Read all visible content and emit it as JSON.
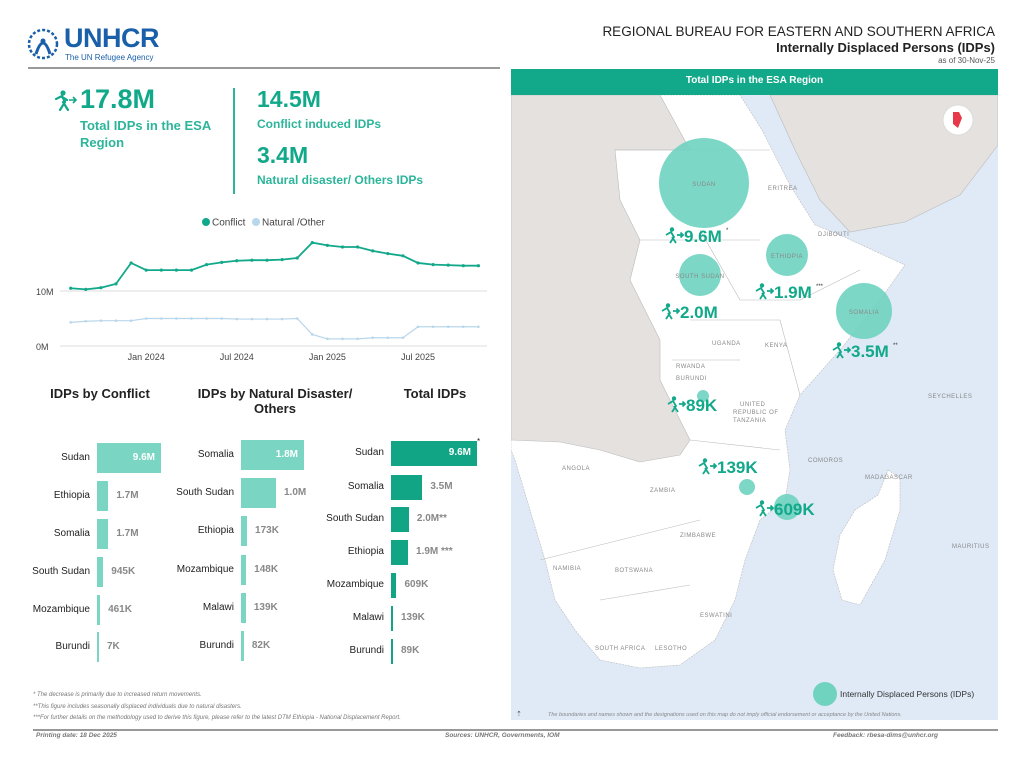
{
  "logo": {
    "name": "UNHCR",
    "tagline": "The UN Refugee Agency"
  },
  "header": {
    "bureau": "REGIONAL BUREAU FOR EASTERN  AND SOUTHERN AFRICA",
    "title": "Internally Displaced Persons (IDPs)",
    "as_of": "as of 30-Nov-25"
  },
  "kpis": {
    "total": {
      "value": "17.8M",
      "label": "Total IDPs in  the ESA Region"
    },
    "conflict": {
      "value": "14.5M",
      "label": "Conflict induced IDPs"
    },
    "natural": {
      "value": "3.4M",
      "label": "Natural disaster/ Others IDPs"
    }
  },
  "colors": {
    "accent": "#12a88a",
    "light_bar": "#7ad5c3",
    "natural_line": "#b9d7ec",
    "map_sea": "#dfeaf6",
    "map_other_land": "#e4e1df"
  },
  "chart_data": [
    {
      "type": "line",
      "legend": [
        "Conflict",
        "Natural /Other"
      ],
      "legend_placement": "top",
      "x": [
        "2023-08",
        "2023-09",
        "2023-10",
        "2023-11",
        "2023-12",
        "2024-01",
        "2024-02",
        "2024-03",
        "2024-04",
        "2024-05",
        "2024-06",
        "2024-07",
        "2024-08",
        "2024-09",
        "2024-10",
        "2024-11",
        "2024-12",
        "2025-01",
        "2025-02",
        "2025-03",
        "2025-04",
        "2025-05",
        "2025-06",
        "2025-07",
        "2025-08",
        "2025-09",
        "2025-10",
        "2025-11"
      ],
      "x_tick_labels": [
        "Jan 2024",
        "Jul 2024",
        "Jan 2025",
        "Jul 2025"
      ],
      "x_tick_values": [
        "2024-01",
        "2024-07",
        "2025-01",
        "2025-07"
      ],
      "y_tick_labels": [
        "0M",
        "10M"
      ],
      "y_tick_values": [
        0,
        10
      ],
      "ylim": [
        0,
        20
      ],
      "unit": "millions",
      "grid": "horizontal",
      "series": [
        {
          "name": "Conflict",
          "color": "#12a88a",
          "values": [
            10.5,
            10.3,
            10.6,
            11.3,
            15.1,
            13.8,
            13.8,
            13.8,
            13.8,
            14.8,
            15.2,
            15.5,
            15.6,
            15.6,
            15.7,
            16.0,
            18.8,
            18.3,
            18.0,
            18.0,
            17.3,
            16.8,
            16.4,
            15.1,
            14.8,
            14.7,
            14.6,
            14.6
          ]
        },
        {
          "name": "Natural /Other",
          "color": "#b9d7ec",
          "values": [
            4.3,
            4.5,
            4.6,
            4.6,
            4.6,
            5.0,
            5.0,
            5.0,
            5.0,
            5.0,
            5.0,
            4.9,
            4.9,
            4.9,
            4.9,
            5.0,
            2.1,
            1.3,
            1.3,
            1.3,
            1.5,
            1.5,
            1.5,
            3.5,
            3.5,
            3.5,
            3.5,
            3.5
          ]
        }
      ]
    },
    {
      "type": "bar",
      "title": "IDPs by Conflict",
      "orientation": "horizontal",
      "categories": [
        "Sudan",
        "Ethiopia",
        "Somalia",
        "South Sudan",
        "Mozambique",
        "Burundi"
      ],
      "values": [
        9600000,
        1700000,
        1700000,
        945000,
        461000,
        7000
      ],
      "labels": [
        "9.6M",
        "1.7M",
        "1.7M",
        "945K",
        "461K",
        "7K"
      ]
    },
    {
      "type": "bar",
      "title": "IDPs by Natural Disaster/ Others",
      "orientation": "horizontal",
      "categories": [
        "Somalia",
        "South Sudan",
        "Ethiopia",
        "Mozambique",
        "Malawi",
        "Burundi"
      ],
      "values": [
        1800000,
        1000000,
        173000,
        148000,
        139000,
        82000
      ],
      "labels": [
        "1.8M",
        "1.0M",
        "173K",
        "148K",
        "139K",
        "82K"
      ]
    },
    {
      "type": "bar",
      "title": "Total IDPs",
      "orientation": "horizontal",
      "categories": [
        "Sudan",
        "Somalia",
        "South Sudan",
        "Ethiopia",
        "Mozambique",
        "Malawi",
        "Burundi"
      ],
      "values": [
        9600000,
        3500000,
        2000000,
        1900000,
        609000,
        139000,
        89000
      ],
      "labels": [
        "9.6M",
        "3.5M",
        "2.0M**",
        "1.9M ***",
        "609K",
        "139K",
        "89K"
      ],
      "marker": "*"
    }
  ],
  "map": {
    "title": "Total IDPs in the ESA Region",
    "bubbles": [
      {
        "country": "SUDAN",
        "label": "9.6M",
        "note": "*",
        "value": 9600000
      },
      {
        "country": "SOUTH SUDAN",
        "label": "2.0M",
        "note": "",
        "value": 2000000
      },
      {
        "country": "ETHIOPIA",
        "label": "1.9M",
        "note": "***",
        "value": 1900000
      },
      {
        "country": "SOMALIA",
        "label": "3.5M",
        "note": "**",
        "value": 3500000
      },
      {
        "country": "BURUNDI",
        "label": "89K",
        "note": "",
        "value": 89000
      },
      {
        "country": "MALAWI",
        "label": "139K",
        "note": "",
        "value": 139000
      },
      {
        "country": "MOZAMBIQUE",
        "label": "609K",
        "note": "",
        "value": 609000
      }
    ],
    "country_labels": [
      "ERITREA",
      "DJIBOUTI",
      "UGANDA",
      "KENYA",
      "RWANDA",
      "BURUNDI",
      "UNITED",
      "REPUBLIC OF",
      "TANZANIA",
      "SEYCHELLES",
      "ANGOLA",
      "ZAMBIA",
      "COMOROS",
      "MADAGASCAR",
      "ZIMBABWE",
      "NAMIBIA",
      "BOTSWANA",
      "MAURITIUS",
      "ESWATINI",
      "SOUTH AFRICA",
      "LESOTHO"
    ],
    "legend": "Internally Displaced Persons (IDPs)",
    "disclaimer": "The boundaries and names shown and the designations used on this map do not imply official endorsement or acceptance by the United Nations."
  },
  "footnotes": [
    "* The decrease is primarily due to increased return movements.",
    "**This figure includes seasonally displaced individuals due to natural disasters.",
    "***For further details on the methodology used to derive this figure, please refer to the latest DTM Ethiopia - National Displacement Report."
  ],
  "footer": {
    "printing": "Printing date: 18 Dec 2025",
    "sources": "Sources: UNHCR, Governments, IOM",
    "feedback": "Feedback: rbesa-dims@unhcr.org"
  }
}
